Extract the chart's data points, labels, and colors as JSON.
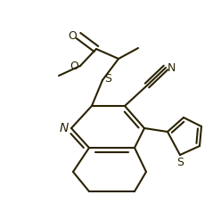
{
  "bg_color": "#ffffff",
  "line_color": "#2a2200",
  "line_width": 1.5,
  "figsize": [
    2.48,
    2.46
  ],
  "dpi": 100,
  "xlim": [
    0,
    248
  ],
  "ylim": [
    0,
    246
  ]
}
